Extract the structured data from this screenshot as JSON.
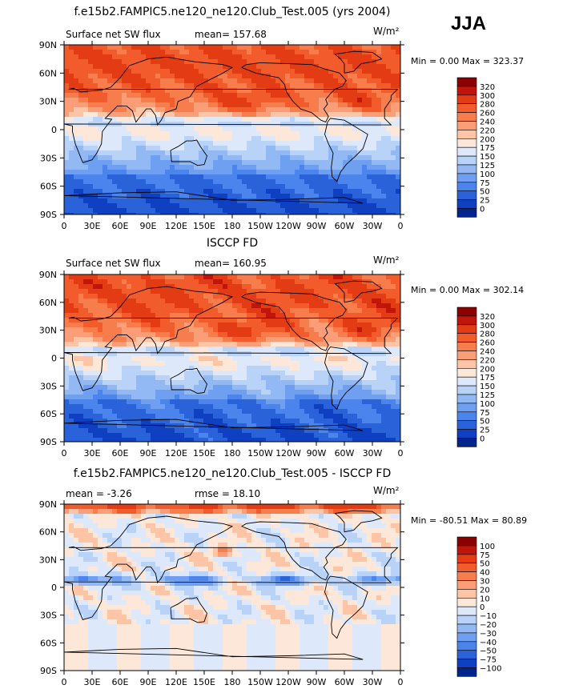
{
  "season": "JJA",
  "chart_data": [
    {
      "type": "heatmap",
      "title": "f.e15b2.FAMPIC5.ne120_ne120.Club_Test.005 (yrs 2004)",
      "variable_label": "Surface net SW flux",
      "stat_left": "mean= 157.68",
      "stat_right": "",
      "units": "W/m²",
      "minmax": "Min =   0.00 Max = 323.37",
      "min": 0.0,
      "max": 323.37,
      "x_ticks": [
        "0",
        "30E",
        "60E",
        "90E",
        "120E",
        "150E",
        "180",
        "150W",
        "120W",
        "90W",
        "60W",
        "30W",
        "0"
      ],
      "y_ticks": [
        "90N",
        "60N",
        "30N",
        "0",
        "30S",
        "60S",
        "90S"
      ],
      "levels": [
        "320",
        "300",
        "280",
        "260",
        "240",
        "220",
        "200",
        "175",
        "150",
        "125",
        "100",
        "75",
        "50",
        "25",
        "0"
      ],
      "colors": [
        "#8b0000",
        "#c1140a",
        "#e33b14",
        "#f25c2c",
        "#f77d4d",
        "#fb9e77",
        "#fdc4a5",
        "#fde7d8",
        "#dde9fb",
        "#b9d2f8",
        "#93b9f4",
        "#6e9ff0",
        "#4a84ec",
        "#2a62da",
        "#0f40c2",
        "#00248c"
      ]
    },
    {
      "type": "heatmap",
      "title": "ISCCP FD",
      "variable_label": "Surface net SW flux",
      "stat_left": "mean= 160.95",
      "stat_right": "",
      "units": "W/m²",
      "minmax": "Min =   0.00 Max = 302.14",
      "min": 0.0,
      "max": 302.14,
      "x_ticks": [
        "0",
        "30E",
        "60E",
        "90E",
        "120E",
        "150E",
        "180",
        "150W",
        "120W",
        "90W",
        "60W",
        "30W",
        "0"
      ],
      "y_ticks": [
        "90N",
        "60N",
        "30N",
        "0",
        "30S",
        "60S",
        "90S"
      ],
      "levels": [
        "320",
        "300",
        "280",
        "260",
        "240",
        "220",
        "200",
        "175",
        "150",
        "125",
        "100",
        "75",
        "50",
        "25",
        "0"
      ],
      "colors": [
        "#8b0000",
        "#c1140a",
        "#e33b14",
        "#f25c2c",
        "#f77d4d",
        "#fb9e77",
        "#fdc4a5",
        "#fde7d8",
        "#dde9fb",
        "#b9d2f8",
        "#93b9f4",
        "#6e9ff0",
        "#4a84ec",
        "#2a62da",
        "#0f40c2",
        "#00248c"
      ]
    },
    {
      "type": "heatmap",
      "title": "f.e15b2.FAMPIC5.ne120_ne120.Club_Test.005 - ISCCP FD",
      "variable_label": "mean =  -3.26",
      "stat_left": "",
      "stat_right": "rmse =  18.10",
      "units": "W/m²",
      "minmax": "Min = -80.51 Max =  80.89",
      "min": -80.51,
      "max": 80.89,
      "x_ticks": [
        "0",
        "30E",
        "60E",
        "90E",
        "120E",
        "150E",
        "180",
        "150W",
        "120W",
        "90W",
        "60W",
        "30W",
        "0"
      ],
      "y_ticks": [
        "90N",
        "60N",
        "30N",
        "0",
        "30S",
        "60S",
        "90S"
      ],
      "levels": [
        "100",
        "75",
        "50",
        "40",
        "30",
        "20",
        "10",
        "0",
        "−10",
        "−20",
        "−30",
        "−40",
        "−50",
        "−75",
        "−100"
      ],
      "colors": [
        "#8b0000",
        "#c1140a",
        "#e33b14",
        "#f25c2c",
        "#f77d4d",
        "#fb9e77",
        "#fdc4a5",
        "#fde7d8",
        "#dde9fb",
        "#b9d2f8",
        "#93b9f4",
        "#6e9ff0",
        "#4a84ec",
        "#2a62da",
        "#0f40c2",
        "#00248c"
      ]
    }
  ]
}
